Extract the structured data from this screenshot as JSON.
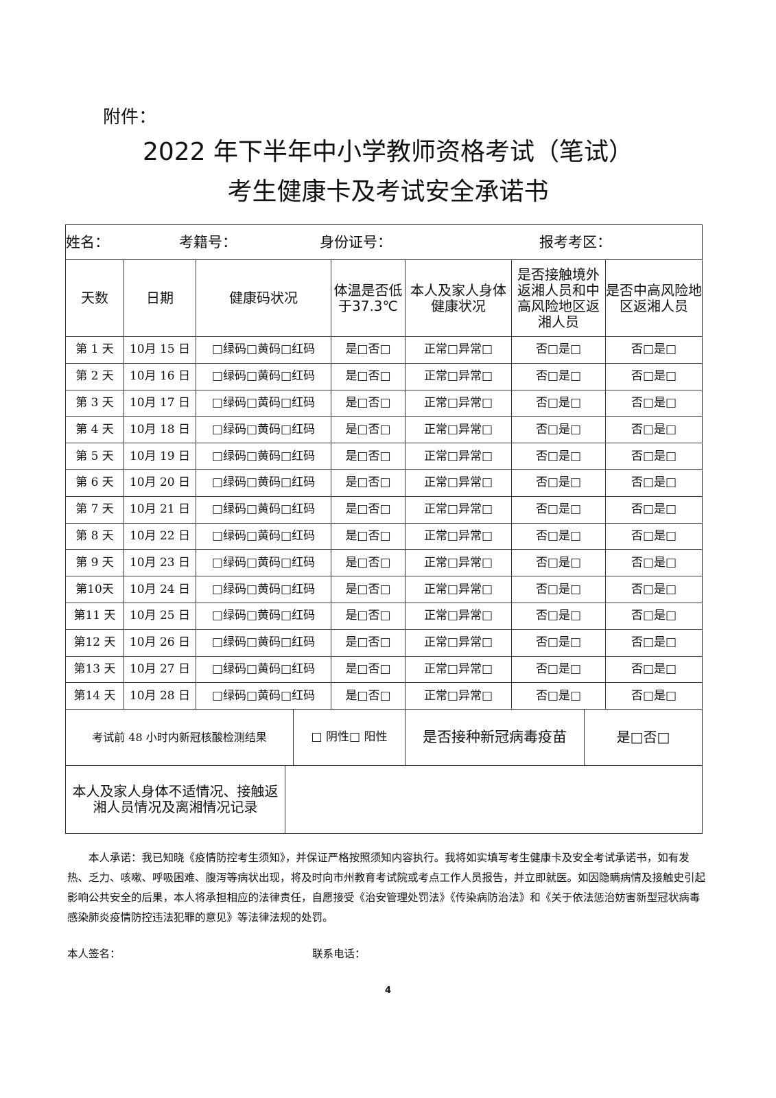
{
  "attachment_label": "附件：",
  "title_line1": "2022 年下半年中小学教师资格考试（笔试）",
  "title_line2": "考生健康卡及考试安全承诺书",
  "info": {
    "name": "姓名：",
    "exam_no": "考籍号：",
    "id_no": "身份证号：",
    "exam_area": "报考考区："
  },
  "headers": [
    "天数",
    "日期",
    "健康码状况",
    "体温是否低于37.3℃",
    "本人及家人身体健康状况",
    "是否接触境外返湘人员和中高风险地区返湘人员",
    "是否中高风险地区返湘人员"
  ],
  "rows": [
    {
      "day": "第 1 天",
      "date": "10月 15 日"
    },
    {
      "day": "第 2 天",
      "date": "10月 16 日"
    },
    {
      "day": "第 3 天",
      "date": "10月 17 日"
    },
    {
      "day": "第 4 天",
      "date": "10月 18 日"
    },
    {
      "day": "第 5 天",
      "date": "10月 19 日"
    },
    {
      "day": "第 6 天",
      "date": "10月 20 日"
    },
    {
      "day": "第 7 天",
      "date": "10月 21 日"
    },
    {
      "day": "第 8 天",
      "date": "10月 22 日"
    },
    {
      "day": "第 9 天",
      "date": "10月 23 日"
    },
    {
      "day": "第10天",
      "date": "10月 24 日"
    },
    {
      "day": "第11 天",
      "date": "10月 25 日"
    },
    {
      "day": "第12 天",
      "date": "10月 26 日"
    },
    {
      "day": "第13 天",
      "date": "10月 27 日"
    },
    {
      "day": "第14 天",
      "date": "10月 28 日"
    }
  ],
  "row_options": {
    "health_code": "□绿码□黄码□红码",
    "temperature": "是□否□",
    "health": "正常□异常□",
    "contact": "否□是□",
    "risk_area": "否□是□"
  },
  "nucleic_label": "考试前 48 小时内新冠核酸检测结果",
  "nucleic_options": "□ 阴性□ 阳性",
  "vaccine_label": "是否接种新冠病毒疫苗",
  "vaccine_options": "是□否□",
  "record_label": "本人及家人身体不适情况、接触返湘人员情况及离湘情况记录",
  "record_value": "",
  "promise": "本人承诺：我已知晓《疫情防控考生须知》，并保证严格按照须知内容执行。我将如实填写考生健康卡及安全考试承诺书，如有发热、乏力、咳嗽、呼吸困难、腹泻等病状出现，将及时向市州教育考试院或考点工作人员报告，并立即就医。如因隐瞒病情及接触史引起影响公共安全的后果，本人将承担相应的法律责任，自愿接受《治安管理处罚法》《传染病防治法》和《关于依法惩治妨害新型冠状病毒感染肺炎疫情防控违法犯罪的意见》等法律法规的处罚。",
  "signature_label": "本人签名：",
  "phone_label": "联系电话：",
  "page_number": "4"
}
